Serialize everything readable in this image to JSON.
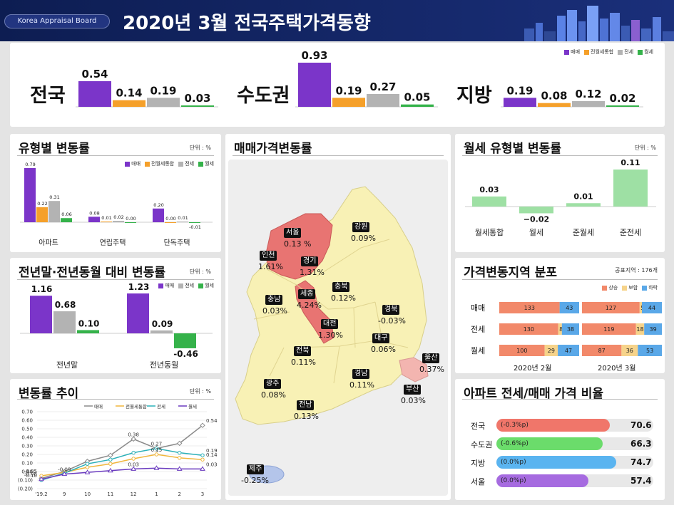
{
  "header": {
    "brand": "Korea Appraisal Board",
    "title": "2020년 3월  전국주택가격동향"
  },
  "colors": {
    "sale": "#7b35c9",
    "integrated": "#f5a02a",
    "jeonse": "#b3b3b3",
    "monthly": "#35b24a"
  },
  "summary": {
    "legend": [
      "매매",
      "전월세통합",
      "전세",
      "월세"
    ],
    "regions": [
      {
        "name": "전국",
        "values": [
          0.54,
          0.14,
          0.19,
          0.03
        ],
        "labels": [
          "0.54",
          "0.14",
          "0.19",
          "0.03"
        ]
      },
      {
        "name": "수도권",
        "values": [
          0.93,
          0.19,
          0.27,
          0.05
        ],
        "labels": [
          "0.93",
          "0.19",
          "0.27",
          "0.05"
        ]
      },
      {
        "name": "지방",
        "values": [
          0.19,
          0.08,
          0.12,
          0.02
        ],
        "labels": [
          "0.19",
          "0.08",
          "0.12",
          "0.02"
        ]
      }
    ]
  },
  "type_panel": {
    "title": "유형별 변동률",
    "unit": "단위 : %",
    "legend": [
      "매매",
      "전월세통합",
      "전세",
      "월세"
    ],
    "chart_data": {
      "type": "bar",
      "categories": [
        "아파트",
        "연립주택",
        "단독주택"
      ],
      "series": [
        {
          "name": "매매",
          "values": [
            0.79,
            0.08,
            0.2
          ],
          "labels": [
            "0.79",
            "0.08",
            "0.20"
          ]
        },
        {
          "name": "전월세통합",
          "values": [
            0.22,
            0.01,
            0.0
          ],
          "labels": [
            "0.22",
            "0.01",
            "0.00"
          ]
        },
        {
          "name": "전세",
          "values": [
            0.31,
            0.02,
            0.01
          ],
          "labels": [
            "0.31",
            "0.02",
            "0.01"
          ]
        },
        {
          "name": "월세",
          "values": [
            0.06,
            0.0,
            -0.01
          ],
          "labels": [
            "0.06",
            "0.00",
            "-0.01"
          ]
        }
      ]
    }
  },
  "yoy_panel": {
    "title": "전년말·전년동월 대비 변동률",
    "unit": "단위 : %",
    "legend": [
      "매매",
      "전세",
      "월세"
    ],
    "chart_data": {
      "type": "bar",
      "categories": [
        "전년말",
        "전년동월"
      ],
      "series": [
        {
          "name": "매매",
          "values": [
            1.16,
            1.23
          ],
          "labels": [
            "1.16",
            "1.23"
          ]
        },
        {
          "name": "전세",
          "values": [
            0.68,
            0.09
          ],
          "labels": [
            "0.68",
            "0.09"
          ]
        },
        {
          "name": "월세",
          "values": [
            0.1,
            -0.46
          ],
          "labels": [
            "0.10",
            "-0.46"
          ]
        }
      ]
    }
  },
  "trend_panel": {
    "title": "변동률 추이",
    "unit": "단위 : %",
    "legend": [
      "매매",
      "전월세통합",
      "전세",
      "월세"
    ],
    "chart_data": {
      "type": "line",
      "x": [
        "'19.2",
        "9",
        "10",
        "11",
        "12",
        "1",
        "2",
        "3"
      ],
      "yticks": [
        "0.70",
        "0.60",
        "0.50",
        "0.40",
        "0.30",
        "0.20",
        "0.10",
        "0.00",
        "(0.10)",
        "(0.20)"
      ],
      "ylim": [
        -0.2,
        0.7
      ],
      "series": [
        {
          "name": "매매",
          "values": [
            -0.08,
            0.0,
            0.12,
            0.19,
            0.38,
            0.27,
            0.33,
            0.54
          ],
          "color": "#8a8a8a"
        },
        {
          "name": "전월세통합",
          "values": [
            -0.05,
            -0.01,
            0.05,
            0.09,
            0.15,
            0.2,
            0.16,
            0.14
          ],
          "color": "#f0b63c"
        },
        {
          "name": "전세",
          "values": [
            -0.1,
            -0.02,
            0.09,
            0.14,
            0.22,
            0.27,
            0.22,
            0.19
          ],
          "color": "#2bb0b8"
        },
        {
          "name": "월세",
          "values": [
            -0.09,
            -0.03,
            -0.01,
            0.01,
            0.03,
            0.04,
            0.03,
            0.03
          ],
          "color": "#6a3bbf"
        }
      ],
      "labels": [
        {
          "text": "0.54",
          "series": 0,
          "index": 7
        },
        {
          "text": "0.38",
          "series": 0,
          "index": 4
        },
        {
          "text": "0.27",
          "series": 2,
          "index": 5
        },
        {
          "text": "0.15",
          "series": 1,
          "index": 5
        },
        {
          "text": "0.03",
          "series": 3,
          "index": 4
        },
        {
          "text": "0.19",
          "series": 2,
          "index": 7
        },
        {
          "text": "0.14",
          "series": 1,
          "index": 7
        },
        {
          "text": "0.03",
          "series": 3,
          "index": 7
        },
        {
          "text": "-0.08",
          "series": 0,
          "index": 0
        },
        {
          "text": "-0.05",
          "series": 1,
          "index": 0
        },
        {
          "text": "-0.09",
          "series": 3,
          "index": 1
        },
        {
          "text": "-0.10",
          "series": 2,
          "index": 0
        }
      ]
    }
  },
  "map_panel": {
    "title": "매매가격변동률",
    "regions": [
      {
        "name": "서울",
        "value": "0.13 %"
      },
      {
        "name": "강원",
        "value": "0.09%"
      },
      {
        "name": "인천",
        "value": "1.61%"
      },
      {
        "name": "경기",
        "value": "1.31%"
      },
      {
        "name": "충남",
        "value": "0.03%"
      },
      {
        "name": "세종",
        "value": "4.24%"
      },
      {
        "name": "충북",
        "value": "0.12%"
      },
      {
        "name": "경북",
        "value": "-0.03%"
      },
      {
        "name": "대전",
        "value": "1.30%"
      },
      {
        "name": "대구",
        "value": "0.06%"
      },
      {
        "name": "울산",
        "value": "0.37%"
      },
      {
        "name": "전북",
        "value": "0.11%"
      },
      {
        "name": "경남",
        "value": "0.11%"
      },
      {
        "name": "광주",
        "value": "0.08%"
      },
      {
        "name": "부산",
        "value": "0.03%"
      },
      {
        "name": "전남",
        "value": "0.13%"
      },
      {
        "name": "제주",
        "value": "-0.25%"
      }
    ]
  },
  "monthly_panel": {
    "title": "월세 유형별 변동률",
    "unit": "단위 : %",
    "chart_data": {
      "type": "bar",
      "categories": [
        "월세통합",
        "월세",
        "준월세",
        "준전세"
      ],
      "values": [
        0.03,
        -0.02,
        0.01,
        0.11
      ],
      "labels": [
        "0.03",
        "−0.02",
        "0.01",
        "0.11"
      ]
    }
  },
  "dist_panel": {
    "title": "가격변동지역 분포",
    "unit": "공표지역 : 176개",
    "legend": [
      "상승",
      "보합",
      "하락"
    ],
    "colors": [
      "#f2896a",
      "#f6d38a",
      "#5aa8e8"
    ],
    "periods": [
      "2020년 2월",
      "2020년 3월"
    ],
    "chart_data": {
      "type": "bar",
      "categories": [
        "매매",
        "전세",
        "월세"
      ],
      "feb": [
        [
          133,
          0,
          43
        ],
        [
          130,
          8,
          38
        ],
        [
          100,
          29,
          47
        ]
      ],
      "mar": [
        [
          127,
          5,
          44
        ],
        [
          119,
          18,
          39
        ],
        [
          87,
          36,
          53
        ]
      ]
    }
  },
  "ratio_panel": {
    "title": "아파트 전세/매매 가격 비율",
    "chart_data": {
      "type": "bar",
      "rows": [
        {
          "region": "전국",
          "change": "(-0.3%p)",
          "value": 70.6,
          "label": "70.6",
          "color": "#f0766a"
        },
        {
          "region": "수도권",
          "change": "(-0.6%p)",
          "value": 66.3,
          "label": "66.3",
          "color": "#6bdc6b"
        },
        {
          "region": "지방",
          "change": "(0.0%p)",
          "value": 74.7,
          "label": "74.7",
          "color": "#5ab4f0"
        },
        {
          "region": "서울",
          "change": "(0.0%p)",
          "value": 57.4,
          "label": "57.4",
          "color": "#a66be0"
        }
      ]
    }
  }
}
